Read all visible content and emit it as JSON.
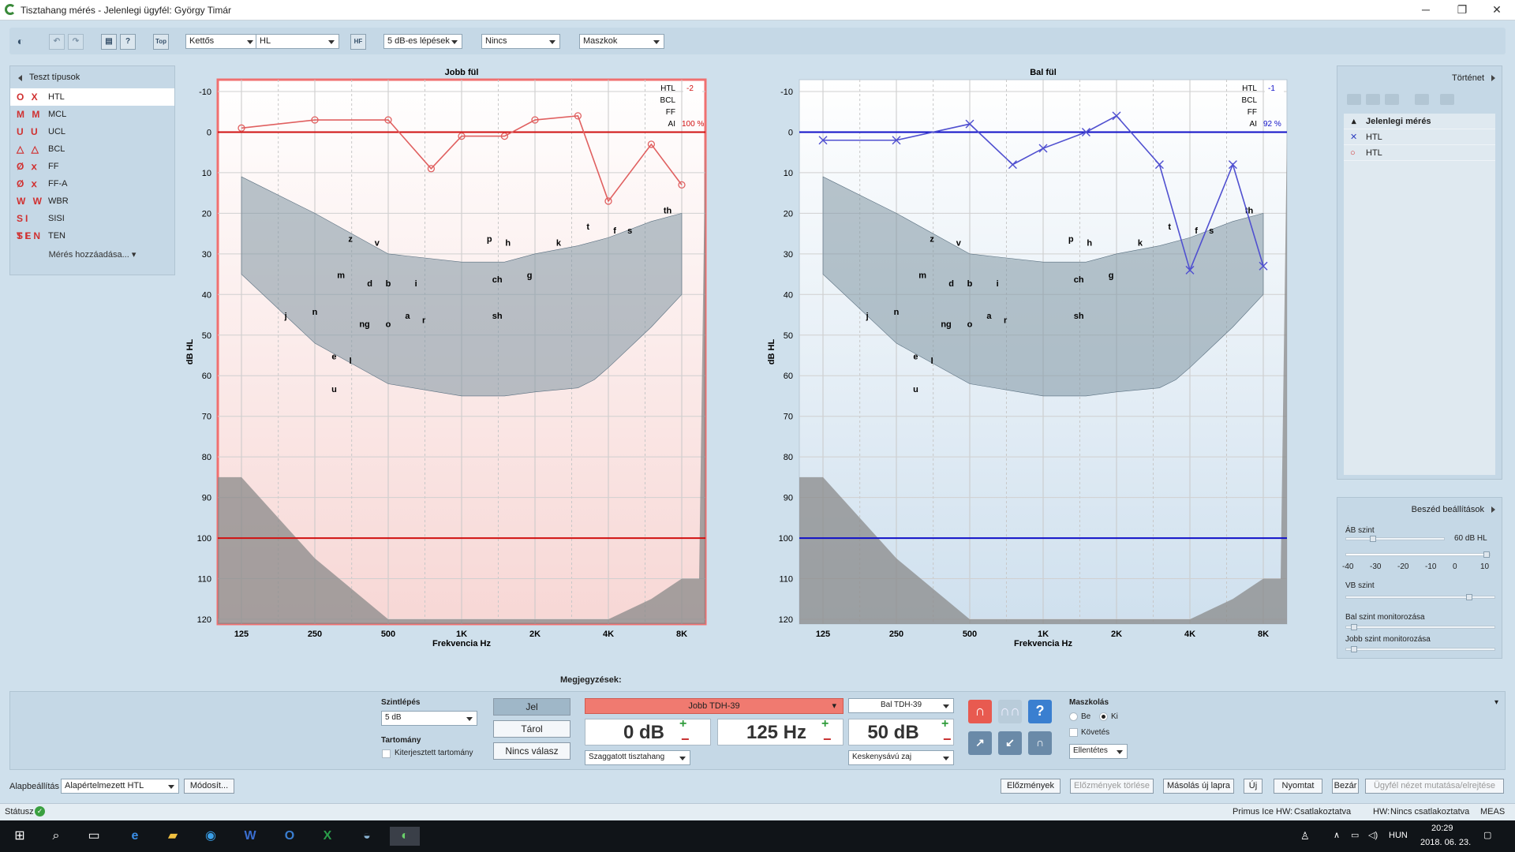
{
  "window": {
    "title": "Tisztahang mérés - Jelenlegi ügyfél: György Timár",
    "min": "─",
    "restore": "❐",
    "close": "✕"
  },
  "toolbar": {
    "dd1": "Kettős",
    "dd2": "HL",
    "dd3": "5 dB-es lépések",
    "dd4": "Nincs",
    "dd5": "Maszkok",
    "top_label": "Top",
    "hf_label": "HF",
    "help_label": "?"
  },
  "left": {
    "header": "Teszt típusok",
    "items": [
      {
        "sym": "O X",
        "label": "HTL",
        "color": "#d03030"
      },
      {
        "sym": "M M",
        "label": "MCL",
        "color": "#d03030"
      },
      {
        "sym": "U U",
        "label": "UCL",
        "color": "#d03030"
      },
      {
        "sym": "△ △",
        "label": "BCL",
        "color": "#d03030"
      },
      {
        "sym": "Ø ⅹ",
        "label": "FF",
        "color": "#d03030"
      },
      {
        "sym": "Ø ⅹ",
        "label": "FF-A",
        "color": "#d03030"
      },
      {
        "sym": "W W",
        "label": "WBR",
        "color": "#d03030"
      },
      {
        "sym": "SI SI",
        "label": "SISI",
        "color": "#d03030"
      },
      {
        "sym": "TEN",
        "label": "TEN",
        "color": "#d03030"
      }
    ],
    "add": "Mérés hozzáadása..."
  },
  "charts": {
    "right": {
      "title": "Jobb fül",
      "ylabel": "dB HL",
      "xlabel": "Frekvencia Hz",
      "htl": "HTL",
      "htl_val": "-2",
      "bcl": "BCL",
      "ff": "FF",
      "ai": "AI",
      "ai_val": "100 %"
    },
    "left": {
      "title": "Bal fül",
      "ylabel": "dB HL",
      "xlabel": "Frekvencia Hz",
      "htl": "HTL",
      "htl_val": "-1",
      "bcl": "BCL",
      "ff": "FF",
      "ai": "AI",
      "ai_val": "92 %"
    },
    "yticks": [
      "-10",
      "0",
      "10",
      "20",
      "30",
      "40",
      "50",
      "60",
      "70",
      "80",
      "90",
      "100",
      "110",
      "120"
    ],
    "xticks": [
      "125",
      "250",
      "500",
      "1K",
      "2K",
      "4K",
      "8K"
    ],
    "speech_letters": [
      "z",
      "v",
      "p",
      "h",
      "k",
      "t",
      "th",
      "f",
      "s",
      "m",
      "d",
      "b",
      "i",
      "ch",
      "g",
      "j",
      "n",
      "ng",
      "o",
      "a",
      "r",
      "sh",
      "e",
      "l",
      "u"
    ]
  },
  "chart_data": [
    {
      "type": "line",
      "title": "Jobb fül",
      "xlabel": "Frekvencia Hz",
      "ylabel": "dB HL",
      "xscale": "log",
      "ylim": [
        -10,
        120
      ],
      "y_inverted": true,
      "series": [
        {
          "name": "HTL",
          "color": "#e06060",
          "marker": "circle",
          "x": [
            125,
            250,
            500,
            750,
            1000,
            1500,
            2000,
            3000,
            4000,
            6000,
            8000
          ],
          "y": [
            -1,
            -3,
            -3,
            9,
            1,
            1,
            -3,
            -4,
            17,
            3,
            13
          ]
        }
      ],
      "reference_lines": [
        0,
        100
      ]
    },
    {
      "type": "line",
      "title": "Bal fül",
      "xlabel": "Frekvencia Hz",
      "ylabel": "dB HL",
      "xscale": "log",
      "ylim": [
        -10,
        120
      ],
      "y_inverted": true,
      "series": [
        {
          "name": "HTL",
          "color": "#5050d0",
          "marker": "x",
          "x": [
            125,
            250,
            500,
            750,
            1000,
            1500,
            2000,
            3000,
            4000,
            6000,
            8000
          ],
          "y": [
            2,
            2,
            -2,
            8,
            4,
            0,
            -4,
            8,
            34,
            8,
            33
          ]
        }
      ],
      "reference_lines": [
        0,
        100
      ]
    }
  ],
  "right": {
    "header": "Történet",
    "group": "Jelenlegi mérés",
    "rows": [
      {
        "sym": "✕",
        "label": "HTL",
        "color": "#3040c0"
      },
      {
        "sym": "○",
        "label": "HTL",
        "color": "#d03030"
      }
    ]
  },
  "speech": {
    "header": "Beszéd beállítások",
    "ab": "ÁB szint",
    "ab_val": "60 dB HL",
    "scale": [
      "-40",
      "-30",
      "-20",
      "-10",
      "0",
      "10"
    ],
    "vb": "VB szint",
    "bal_mon": "Bal szint monitorozása",
    "jobb_mon": "Jobb szint monitorozása"
  },
  "notes": "Megjegyzések:",
  "bottom": {
    "szintlepes": "Szintlépés",
    "szint_val": "5 dB",
    "tartomany": "Tartomány",
    "kiterjesztett": "Kiterjesztett tartomány",
    "jel": "Jel",
    "tarol": "Tárol",
    "nincs": "Nincs válasz",
    "right_trans": "Jobb TDH-39",
    "right_db": "0 dB",
    "right_hz": "125 Hz",
    "right_sig": "Szaggatott tisztahang",
    "left_trans": "Bal TDH-39",
    "left_db": "50 dB",
    "left_noise": "Keskenysávú zaj",
    "masking": "Maszkolás",
    "be": "Be",
    "ki": "Ki",
    "kovetes": "Követés",
    "ellentetes": "Ellentétes"
  },
  "options": {
    "alap": "Alapbeállítás",
    "alap_val": "Alapértelmezett HTL",
    "modosit": "Módosít...",
    "buttons": [
      "Előzmények",
      "Előzmények törlése",
      "Másolás új lapra",
      "Új",
      "Nyomtat",
      "Bezár",
      "Ügyfél nézet mutatása/elrejtése"
    ]
  },
  "status": {
    "label": "Státusz",
    "primus": "Primus Ice HW:",
    "csat": "Csatlakoztatva",
    "hw": "HW:",
    "hw_val": "Nincs csatlakoztatva",
    "meas": "MEAS"
  },
  "tray": {
    "lang": "HUN",
    "time": "20:29",
    "date": "2018. 06. 23."
  }
}
